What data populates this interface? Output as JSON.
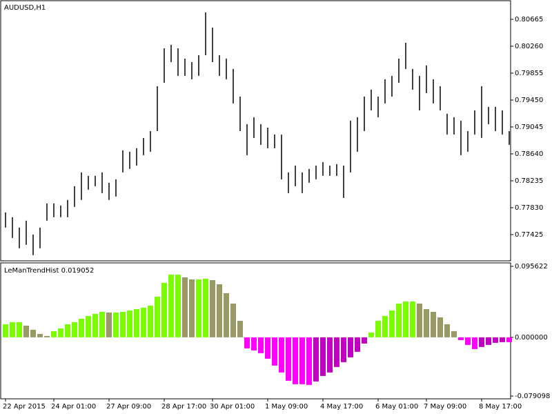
{
  "chart_data": [
    {
      "type": "range-bar",
      "title": "AUDUSD,H1",
      "color": "#000000",
      "high": [
        0.77759,
        0.77686,
        0.7753,
        0.77634,
        0.77426,
        0.7753,
        0.77894,
        0.77894,
        0.77862,
        0.77946,
        0.78153,
        0.78361,
        0.78309,
        0.78309,
        0.78361,
        0.78205,
        0.78257,
        0.78693,
        0.78672,
        0.78724,
        0.7888,
        0.78983,
        0.79658,
        0.80229,
        0.80281,
        0.80229,
        0.80073,
        0.80021,
        0.80125,
        0.80769,
        0.8054,
        0.80125,
        0.80073,
        0.79918,
        0.79502,
        0.79087,
        0.79191,
        0.79087,
        0.79035,
        0.78931,
        0.78931,
        0.78361,
        0.78464,
        0.78361,
        0.78413,
        0.78464,
        0.78516,
        0.78464,
        0.78485,
        0.78464,
        0.79139,
        0.79191,
        0.79502,
        0.79606,
        0.79502,
        0.79762,
        0.79814,
        0.80073,
        0.80312,
        0.79918,
        0.79814,
        0.7997,
        0.79762,
        0.79658,
        0.79243,
        0.79191,
        0.79139,
        0.78983,
        0.79295,
        0.79658,
        0.79347,
        0.79347,
        0.79295,
        0.78983
      ],
      "low": [
        0.7753,
        0.77374,
        0.77219,
        0.77271,
        0.77115,
        0.77219,
        0.77634,
        0.77686,
        0.77686,
        0.77686,
        0.77842,
        0.77946,
        0.78101,
        0.78153,
        0.78049,
        0.77946,
        0.77997,
        0.78361,
        0.78413,
        0.78464,
        0.7862,
        0.78672,
        0.78983,
        0.7971,
        0.80021,
        0.79814,
        0.79814,
        0.79762,
        0.79814,
        0.80125,
        0.80021,
        0.79814,
        0.79762,
        0.79399,
        0.78983,
        0.7862,
        0.7888,
        0.78776,
        0.78724,
        0.78724,
        0.78257,
        0.78049,
        0.78153,
        0.78049,
        0.78205,
        0.78257,
        0.78309,
        0.78309,
        0.78309,
        0.77976,
        0.78361,
        0.78672,
        0.78983,
        0.79295,
        0.79191,
        0.79399,
        0.79502,
        0.7971,
        0.79918,
        0.79606,
        0.79295,
        0.79554,
        0.79399,
        0.79295,
        0.78931,
        0.78931,
        0.7862,
        0.78672,
        0.78931,
        0.7888,
        0.79087,
        0.78983,
        0.78931,
        0.78776
      ],
      "ylim": [
        0.7703,
        0.80935
      ],
      "yticks": [
        {
          "value": 0.80665,
          "label": "0.80665"
        },
        {
          "value": 0.8026,
          "label": "0.80260"
        },
        {
          "value": 0.79855,
          "label": "0.79855"
        },
        {
          "value": 0.7945,
          "label": "0.79450"
        },
        {
          "value": 0.79045,
          "label": "0.79045"
        },
        {
          "value": 0.7864,
          "label": "0.78640"
        },
        {
          "value": 0.78235,
          "label": "0.78235"
        },
        {
          "value": 0.7783,
          "label": "0.77830"
        },
        {
          "value": 0.77425,
          "label": "0.77425"
        }
      ]
    },
    {
      "type": "histogram-bar",
      "title": "LeManTrendHist 0.019052",
      "colors": {
        "up": "#7cfc00",
        "down": "#999966",
        "neg_down": "#ff00ff",
        "neg_up": "#c000c0"
      },
      "values": [
        0.01764,
        0.02043,
        0.02043,
        0.01578,
        0.01021,
        0.00464,
        0.00186,
        0.00836,
        0.01207,
        0.01764,
        0.02043,
        0.02507,
        0.02878,
        0.03157,
        0.03435,
        0.03343,
        0.03343,
        0.03435,
        0.03621,
        0.03807,
        0.03993,
        0.04271,
        0.05478,
        0.07335,
        0.08449,
        0.08449,
        0.08078,
        0.07799,
        0.07799,
        0.07892,
        0.07707,
        0.0715,
        0.05942,
        0.0455,
        0.02228,
        -0.01486,
        -0.01764,
        -0.02136,
        -0.02878,
        -0.03807,
        -0.04735,
        -0.0585,
        -0.06314,
        -0.06314,
        -0.06407,
        -0.05942,
        -0.052,
        -0.04735,
        -0.03993,
        -0.03343,
        -0.02693,
        -0.0195,
        -0.00836,
        0.0065,
        0.02228,
        0.02878,
        0.03621,
        0.0455,
        0.04828,
        0.04828,
        0.0455,
        0.03807,
        0.03435,
        0.02693,
        0.01764,
        0.00836,
        -0.00371,
        -0.01021,
        -0.01578,
        -0.013,
        -0.01021,
        -0.00743,
        -0.0065,
        -0.0065
      ],
      "categories": [
        "22 Apr 2015",
        null,
        null,
        null,
        null,
        null,
        null,
        "24 Apr 01:00",
        null,
        null,
        null,
        null,
        null,
        null,
        null,
        "27 Apr 09:00",
        null,
        null,
        null,
        null,
        null,
        null,
        null,
        "28 Apr 17:00",
        null,
        null,
        null,
        null,
        null,
        null,
        "30 Apr 01:00",
        null,
        null,
        null,
        null,
        null,
        null,
        null,
        "1 May 09:00",
        null,
        null,
        null,
        null,
        null,
        null,
        null,
        "4 May 17:00",
        null,
        null,
        null,
        null,
        null,
        null,
        null,
        "6 May 01:00",
        null,
        null,
        null,
        null,
        null,
        null,
        "7 May 09:00",
        null,
        null,
        null,
        null,
        null,
        null,
        null,
        "8 May 17:00",
        null,
        null,
        null,
        null
      ],
      "ylim": [
        -0.079098,
        0.095622
      ],
      "yticks": [
        0.095622,
        {
          "value": 0,
          "label": "0.000000"
        },
        -0.079098
      ]
    }
  ]
}
